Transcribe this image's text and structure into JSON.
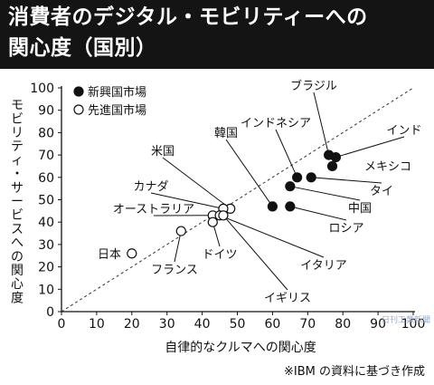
{
  "title": {
    "line1": "消費者のデジタル・モビリティーへの",
    "line2": "関心度（国別）"
  },
  "source": "※IBM の資料に基づき作成",
  "watermark": "日刊工業新聞",
  "colors": {
    "title_background": "#141414",
    "title_text": "#ffffff",
    "emerging_marker": "#111111",
    "developed_marker": "#ffffff",
    "diagonal_line": "#333333"
  },
  "chart_data": {
    "type": "scatter",
    "xlabel": "自律的なクルマへの関心度",
    "ylabel": "モビリティ・サービスへの関心度",
    "xlim": [
      0,
      100
    ],
    "ylim": [
      0,
      100
    ],
    "xticks": [
      "0",
      "10",
      "20",
      "30",
      "40",
      "50",
      "60",
      "70",
      "80",
      "90",
      "100"
    ],
    "yticks": [
      "0",
      "10",
      "20",
      "30",
      "40",
      "50",
      "60",
      "70",
      "80",
      "90",
      "100"
    ],
    "grid": false,
    "legend_position": "top-left",
    "reference_line": "y = x (dashed)",
    "series": [
      {
        "name": "新興国市場",
        "marker": "filled",
        "points": [
          {
            "label": "ブラジル",
            "x": 76,
            "y": 70
          },
          {
            "label": "インド",
            "x": 78,
            "y": 69
          },
          {
            "label": "メキシコ",
            "x": 77,
            "y": 65
          },
          {
            "label": "インドネシア",
            "x": 67,
            "y": 60
          },
          {
            "label": "タイ",
            "x": 71,
            "y": 60
          },
          {
            "label": "中国",
            "x": 65,
            "y": 56
          },
          {
            "label": "ロシア",
            "x": 65,
            "y": 47
          },
          {
            "label": "韓国",
            "x": 60,
            "y": 47
          }
        ]
      },
      {
        "name": "先進国市場",
        "marker": "open",
        "points": [
          {
            "label": "米国",
            "x": 48,
            "y": 46
          },
          {
            "label": "カナダ",
            "x": 46,
            "y": 46
          },
          {
            "label": "オーストラリア",
            "x": 43,
            "y": 43
          },
          {
            "label": "イタリア",
            "x": 45,
            "y": 43
          },
          {
            "label": "ドイツ",
            "x": 43,
            "y": 40
          },
          {
            "label": "イギリス",
            "x": 46,
            "y": 43
          },
          {
            "label": "フランス",
            "x": 34,
            "y": 36
          },
          {
            "label": "日本",
            "x": 20,
            "y": 26
          }
        ]
      }
    ]
  }
}
